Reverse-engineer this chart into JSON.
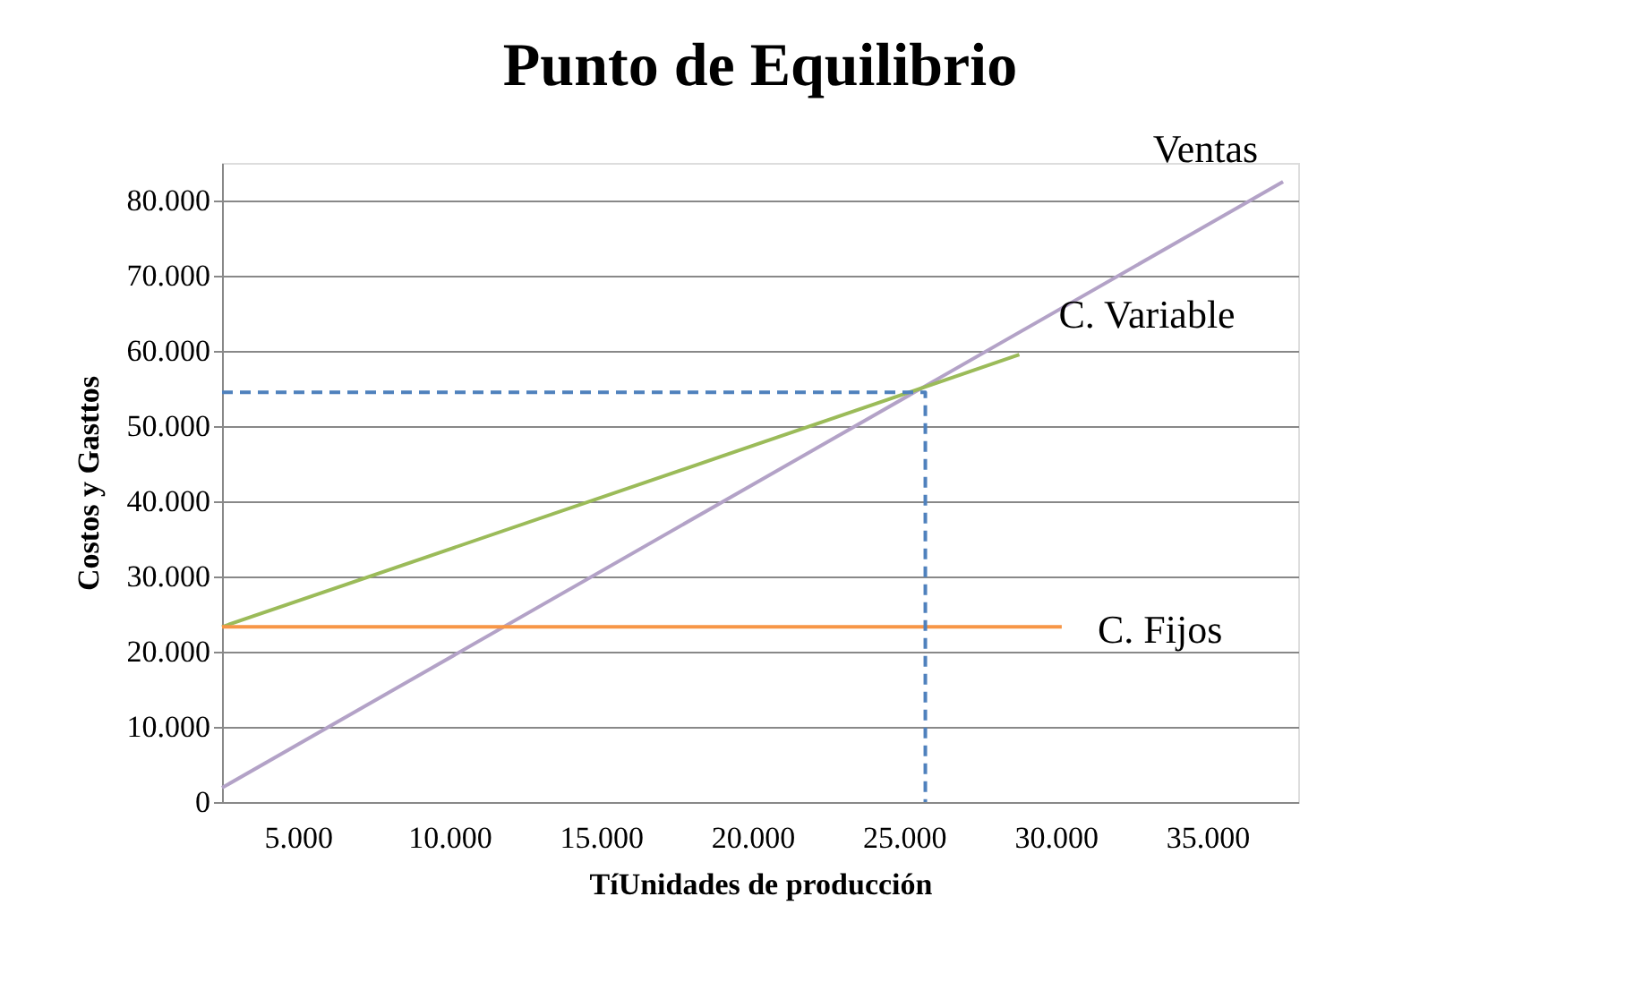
{
  "chart_data": {
    "type": "line",
    "title": "Punto de Equilibrio",
    "xlabel": "TíUnidades de producción",
    "ylabel": "Costos y Gasttos",
    "xlim": [
      2500,
      38000
    ],
    "ylim": [
      0,
      85000
    ],
    "xticks": [
      {
        "value": 5000,
        "label": "5.000"
      },
      {
        "value": 10000,
        "label": "10.000"
      },
      {
        "value": 15000,
        "label": "15.000"
      },
      {
        "value": 20000,
        "label": "20.000"
      },
      {
        "value": 25000,
        "label": "25.000"
      },
      {
        "value": 30000,
        "label": "30.000"
      },
      {
        "value": 35000,
        "label": "35.000"
      }
    ],
    "yticks": [
      0,
      {
        "value": 10000,
        "label": "10.000"
      },
      {
        "value": 20000,
        "label": "20.000"
      },
      {
        "value": 30000,
        "label": "30.000"
      },
      {
        "value": 40000,
        "label": "40.000"
      },
      {
        "value": 50000,
        "label": "50.000"
      },
      {
        "value": 60000,
        "label": "60.000"
      },
      {
        "value": 70000,
        "label": "70.000"
      },
      {
        "value": 80000,
        "label": "80.000"
      }
    ],
    "grid": "y",
    "marker": "none",
    "series": [
      {
        "name": "Ventas",
        "color": "#b3a2c7",
        "x": [
          2500,
          37500
        ],
        "values": [
          1900,
          82500
        ],
        "line_style": "solid"
      },
      {
        "name": "C. Variable",
        "color": "#9bbb59",
        "x": [
          2500,
          28800
        ],
        "values": [
          23300,
          59500
        ],
        "line_style": "solid"
      },
      {
        "name": "C. Fijos",
        "color": "#f79646",
        "x": [
          2500,
          30200
        ],
        "values": [
          23300,
          23300
        ],
        "line_style": "solid"
      },
      {
        "color": "#4f81bd",
        "x": [
          2500,
          25700,
          25700
        ],
        "values": [
          54500,
          54500,
          0
        ],
        "line_style": "dashed"
      }
    ]
  }
}
